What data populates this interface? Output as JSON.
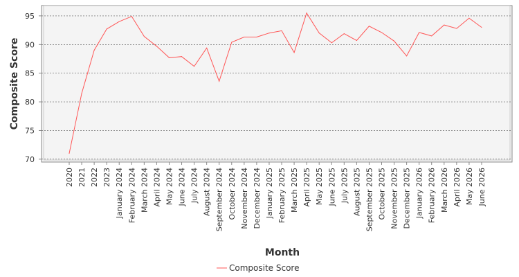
{
  "chart_data": {
    "type": "line",
    "title": "",
    "xlabel": "Month",
    "ylabel": "Composite Score",
    "ylim": [
      69.5,
      96.8
    ],
    "yticks": [
      70,
      75,
      80,
      85,
      90,
      95
    ],
    "grid": true,
    "legend_position": "bottom-center",
    "categories": [
      "2020",
      "2021",
      "2022",
      "2023",
      "January 2024",
      "February 2024",
      "March 2024",
      "April 2024",
      "May 2024",
      "June 2024",
      "July 2024",
      "August 2024",
      "September 2024",
      "October 2024",
      "November 2024",
      "December 2024",
      "January 2025",
      "February 2025",
      "March 2025",
      "April 2025",
      "May 2025",
      "June 2025",
      "July 2025",
      "August 2025",
      "September 2025",
      "October 2025",
      "November 2025",
      "December 2025",
      "January 2026",
      "February 2026",
      "March 2026",
      "April 2026",
      "May 2026",
      "June 2026"
    ],
    "series": [
      {
        "name": "Composite Score",
        "color": "#ff5555",
        "values": [
          71.0,
          81.5,
          89.0,
          92.7,
          94.0,
          94.9,
          91.4,
          89.7,
          87.7,
          87.9,
          86.2,
          89.4,
          83.6,
          90.4,
          91.3,
          91.3,
          92.0,
          92.4,
          88.6,
          95.5,
          92.0,
          90.3,
          91.9,
          90.7,
          93.2,
          92.1,
          90.6,
          88.0,
          92.1,
          91.5,
          93.4,
          92.8,
          94.6,
          93.0
        ]
      }
    ]
  }
}
